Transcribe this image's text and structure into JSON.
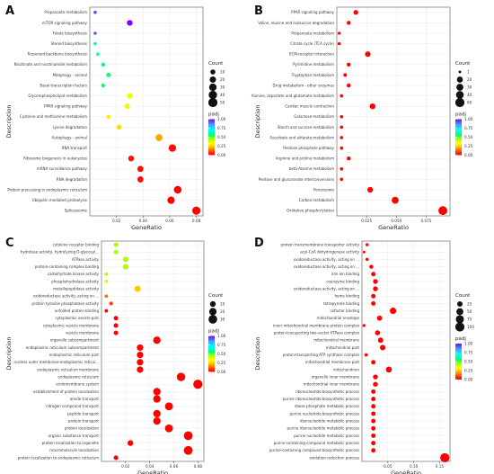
{
  "chart_data": [
    {
      "panel_label": "A",
      "type": "scatter",
      "xlabel": "GeneRatio",
      "ylabel": "Description",
      "x_ticks": [
        "0.02",
        "0.04",
        "0.06",
        "0.08"
      ],
      "xlim": [
        0.0,
        0.085
      ],
      "size_legend": {
        "title": "Count",
        "values": [
          10,
          20,
          30,
          40,
          50
        ]
      },
      "color_legend": {
        "title": "padj",
        "values": [
          "1.00",
          "0.75",
          "0.50",
          "0.25",
          "0.00"
        ]
      },
      "points": [
        {
          "term": "Propanoate metabolism",
          "x": 0.004,
          "count": 2,
          "padj": 0.95
        },
        {
          "term": "mTOR signaling pathway",
          "x": 0.03,
          "count": 15,
          "padj": 1.0
        },
        {
          "term": "Folate biosynthesis",
          "x": 0.004,
          "count": 2,
          "padj": 0.92
        },
        {
          "term": "Steroid biosynthesis",
          "x": 0.004,
          "count": 2,
          "padj": 0.6
        },
        {
          "term": "Terpenoid backbone biosynthesis",
          "x": 0.006,
          "count": 3,
          "padj": 0.65
        },
        {
          "term": "Nicotinate and nicotinamide metabolism",
          "x": 0.01,
          "count": 5,
          "padj": 0.58
        },
        {
          "term": "Mitophagy - animal",
          "x": 0.014,
          "count": 6,
          "padj": 0.55
        },
        {
          "term": "Basal transcription factors",
          "x": 0.01,
          "count": 4,
          "padj": 0.55
        },
        {
          "term": "Glycerophospholipid metabolism",
          "x": 0.03,
          "count": 14,
          "padj": 0.35
        },
        {
          "term": "PPAR signaling pathway",
          "x": 0.028,
          "count": 13,
          "padj": 0.35
        },
        {
          "term": "Cysteine and methionine metabolism",
          "x": 0.014,
          "count": 6,
          "padj": 0.3
        },
        {
          "term": "Lysine degradation",
          "x": 0.022,
          "count": 10,
          "padj": 0.28
        },
        {
          "term": "Autophagy - animal",
          "x": 0.052,
          "count": 25,
          "padj": 0.2
        },
        {
          "term": "RNA transport",
          "x": 0.062,
          "count": 30,
          "padj": 0.02
        },
        {
          "term": "Ribosome biogenesis in eukaryotes",
          "x": 0.031,
          "count": 15,
          "padj": 0.03
        },
        {
          "term": "mRNA surveillance pathway",
          "x": 0.038,
          "count": 18,
          "padj": 0.02
        },
        {
          "term": "RNA degradation",
          "x": 0.038,
          "count": 18,
          "padj": 0.02
        },
        {
          "term": "Protein processing in endoplasmic reticulum",
          "x": 0.066,
          "count": 32,
          "padj": 0.0
        },
        {
          "term": "Ubiquitin mediated proteolysis",
          "x": 0.061,
          "count": 29,
          "padj": 0.0
        },
        {
          "term": "Spliceosome",
          "x": 0.08,
          "count": 38,
          "padj": 0.0
        }
      ]
    },
    {
      "panel_label": "B",
      "type": "scatter",
      "xlabel": "GeneRatio",
      "ylabel": "Description",
      "x_ticks": [
        "0.025",
        "0.050",
        "0.075"
      ],
      "xlim": [
        0.0,
        0.095
      ],
      "size_legend": {
        "title": "Count",
        "values": [
          1,
          20,
          30,
          40,
          60
        ]
      },
      "color_legend": {
        "title": "padj",
        "values": [
          "1.00",
          "0.75",
          "0.50",
          "0.25",
          "0.00"
        ]
      },
      "points": [
        {
          "term": "PPAR signaling pathway",
          "x": 0.016,
          "count": 10,
          "padj": 0.0
        },
        {
          "term": "Valine, leucine and isoleucine degradation",
          "x": 0.01,
          "count": 6,
          "padj": 0.0
        },
        {
          "term": "Propanoate metabolism",
          "x": 0.002,
          "count": 2,
          "padj": 0.0
        },
        {
          "term": "Citrate cycle (TCA cycle)",
          "x": 0.002,
          "count": 2,
          "padj": 0.0
        },
        {
          "term": "ECM-receptor interaction",
          "x": 0.026,
          "count": 16,
          "padj": 0.0
        },
        {
          "term": "Pyrimidine metabolism",
          "x": 0.01,
          "count": 6,
          "padj": 0.0
        },
        {
          "term": "Tryptophan metabolism",
          "x": 0.007,
          "count": 4,
          "padj": 0.0
        },
        {
          "term": "Drug metabolism - other enzymes",
          "x": 0.01,
          "count": 6,
          "padj": 0.0
        },
        {
          "term": "Alanine, aspartate and glutamate metabolism",
          "x": 0.004,
          "count": 3,
          "padj": 0.0
        },
        {
          "term": "Cardiac muscle contraction",
          "x": 0.03,
          "count": 18,
          "padj": 0.0
        },
        {
          "term": "Galactose metabolism",
          "x": 0.004,
          "count": 3,
          "padj": 0.0
        },
        {
          "term": "Starch and sucrose metabolism",
          "x": 0.004,
          "count": 3,
          "padj": 0.0
        },
        {
          "term": "Ascorbate and aldarate metabolism",
          "x": 0.004,
          "count": 3,
          "padj": 0.0
        },
        {
          "term": "Pentose phosphate pathway",
          "x": 0.004,
          "count": 3,
          "padj": 0.0
        },
        {
          "term": "Arginine and proline metabolism",
          "x": 0.01,
          "count": 6,
          "padj": 0.0
        },
        {
          "term": "beta-Alanine metabolism",
          "x": 0.004,
          "count": 3,
          "padj": 0.0
        },
        {
          "term": "Pentose and glucuronate interconversions",
          "x": 0.004,
          "count": 3,
          "padj": 0.0
        },
        {
          "term": "Peroxisome",
          "x": 0.028,
          "count": 17,
          "padj": 0.0
        },
        {
          "term": "Carbon metabolism",
          "x": 0.049,
          "count": 30,
          "padj": 0.0
        },
        {
          "term": "Oxidative phosphorylation",
          "x": 0.089,
          "count": 55,
          "padj": 0.0
        }
      ]
    },
    {
      "panel_label": "C",
      "type": "scatter",
      "xlabel": "GeneRatio",
      "ylabel": "Description",
      "x_ticks": [
        "0.02",
        "0.04",
        "0.06",
        "0.08"
      ],
      "xlim": [
        0.0,
        0.085
      ],
      "size_legend": {
        "title": "Count",
        "values": [
          10,
          20,
          30
        ]
      },
      "color_legend": {
        "title": "padj",
        "values": [
          "1.00",
          "0.75",
          "0.50",
          "0.25",
          "0.00"
        ]
      },
      "points": [
        {
          "term": "cytokine receptor binding",
          "x": 0.012,
          "count": 5,
          "padj": 0.45
        },
        {
          "term": "hydrolase activity, hydrolyzing O-glycosyl...",
          "x": 0.012,
          "count": 5,
          "padj": 0.45
        },
        {
          "term": "ATPase activity",
          "x": 0.02,
          "count": 9,
          "padj": 0.45
        },
        {
          "term": "protein-containing complex binding",
          "x": 0.02,
          "count": 9,
          "padj": 0.45
        },
        {
          "term": "carbohydrate kinase activity",
          "x": 0.004,
          "count": 2,
          "padj": 0.45
        },
        {
          "term": "phosphohydrolase activity",
          "x": 0.004,
          "count": 2,
          "padj": 0.4
        },
        {
          "term": "metallopeptidase activity",
          "x": 0.03,
          "count": 13,
          "padj": 0.25
        },
        {
          "term": "oxidoreductase activity, acting on ...",
          "x": 0.004,
          "count": 2,
          "padj": 0.15
        },
        {
          "term": "protein tyrosine phosphatase activity",
          "x": 0.008,
          "count": 3,
          "padj": 0.1
        },
        {
          "term": "unfolded protein binding",
          "x": 0.004,
          "count": 2,
          "padj": 0.0
        },
        {
          "term": "cytoplasmic vesicle part",
          "x": 0.012,
          "count": 5,
          "padj": 0.0
        },
        {
          "term": "cytoplasmic vesicle membrane",
          "x": 0.012,
          "count": 5,
          "padj": 0.0
        },
        {
          "term": "vesicle membrane",
          "x": 0.012,
          "count": 5,
          "padj": 0.0
        },
        {
          "term": "organelle subcompartment",
          "x": 0.046,
          "count": 20,
          "padj": 0.0
        },
        {
          "term": "endoplasmic reticulum subcompartment",
          "x": 0.032,
          "count": 14,
          "padj": 0.0
        },
        {
          "term": "endoplasmic reticulum part",
          "x": 0.032,
          "count": 14,
          "padj": 0.0
        },
        {
          "term": "nuclear outer membrane-endoplasmic reticul...",
          "x": 0.032,
          "count": 14,
          "padj": 0.0
        },
        {
          "term": "endoplasmic reticulum membrane",
          "x": 0.032,
          "count": 14,
          "padj": 0.0
        },
        {
          "term": "endoplasmic reticulum",
          "x": 0.066,
          "count": 28,
          "padj": 0.0
        },
        {
          "term": "endomembrane system",
          "x": 0.08,
          "count": 34,
          "padj": 0.0
        },
        {
          "term": "establishment of protein localization",
          "x": 0.046,
          "count": 20,
          "padj": 0.0
        },
        {
          "term": "amide transport",
          "x": 0.046,
          "count": 20,
          "padj": 0.0
        },
        {
          "term": "nitrogen compound transport",
          "x": 0.056,
          "count": 24,
          "padj": 0.0
        },
        {
          "term": "peptide transport",
          "x": 0.046,
          "count": 20,
          "padj": 0.0
        },
        {
          "term": "protein transport",
          "x": 0.046,
          "count": 20,
          "padj": 0.0
        },
        {
          "term": "protein localization",
          "x": 0.056,
          "count": 24,
          "padj": 0.0
        },
        {
          "term": "organic substance transport",
          "x": 0.072,
          "count": 31,
          "padj": 0.0
        },
        {
          "term": "protein localization to organelle",
          "x": 0.024,
          "count": 10,
          "padj": 0.0
        },
        {
          "term": "macromolecule localization",
          "x": 0.072,
          "count": 31,
          "padj": 0.0
        },
        {
          "term": "protein localization to endoplasmic reticulum",
          "x": 0.012,
          "count": 5,
          "padj": 0.0
        }
      ]
    },
    {
      "panel_label": "D",
      "type": "scatter",
      "xlabel": "GeneRatio",
      "ylabel": "Description",
      "x_ticks": [
        "0.05",
        "0.10",
        "0.15"
      ],
      "xlim": [
        0.0,
        0.17
      ],
      "size_legend": {
        "title": "Count",
        "values": [
          25,
          50,
          75,
          100
        ]
      },
      "color_legend": {
        "title": "padj",
        "values": [
          "1.00",
          "0.75",
          "0.50",
          "0.25",
          "0.00"
        ]
      },
      "points": [
        {
          "term": "protein transmembrane transporter activity",
          "x": 0.01,
          "count": 4,
          "padj": 0.0
        },
        {
          "term": "acyl-CoA dehydrogenase activity",
          "x": 0.004,
          "count": 2,
          "padj": 0.0
        },
        {
          "term": "oxidoreductase activity, acting on ...",
          "x": 0.01,
          "count": 4,
          "padj": 0.0
        },
        {
          "term": "oxidoreductase activity, acting on ...",
          "x": 0.018,
          "count": 10,
          "padj": 0.0
        },
        {
          "term": "iron ion binding",
          "x": 0.022,
          "count": 14,
          "padj": 0.0
        },
        {
          "term": "coenzyme binding",
          "x": 0.026,
          "count": 18,
          "padj": 0.0
        },
        {
          "term": "oxidoreductase activity, acting on ...",
          "x": 0.026,
          "count": 18,
          "padj": 0.0
        },
        {
          "term": "heme binding",
          "x": 0.022,
          "count": 14,
          "padj": 0.0
        },
        {
          "term": "tetrapyrrole binding",
          "x": 0.022,
          "count": 14,
          "padj": 0.0
        },
        {
          "term": "cofactor binding",
          "x": 0.06,
          "count": 40,
          "padj": 0.0
        },
        {
          "term": "mitochondrial envelope",
          "x": 0.034,
          "count": 22,
          "padj": 0.0
        },
        {
          "term": "inner mitochondrial membrane protein complex",
          "x": 0.004,
          "count": 3,
          "padj": 0.0
        },
        {
          "term": "proton-transporting two-sector ATPase complex",
          "x": 0.03,
          "count": 20,
          "padj": 0.0
        },
        {
          "term": "mitochondrial membrane",
          "x": 0.036,
          "count": 24,
          "padj": 0.0
        },
        {
          "term": "mitochondrial part",
          "x": 0.04,
          "count": 26,
          "padj": 0.0
        },
        {
          "term": "proton-transporting ATP synthase complex",
          "x": 0.008,
          "count": 5,
          "padj": 0.0
        },
        {
          "term": "mitochondrial membrane part",
          "x": 0.022,
          "count": 14,
          "padj": 0.0
        },
        {
          "term": "mitochondrion",
          "x": 0.052,
          "count": 34,
          "padj": 0.0
        },
        {
          "term": "organelle inner membrane",
          "x": 0.026,
          "count": 18,
          "padj": 0.0
        },
        {
          "term": "mitochondrial inner membrane",
          "x": 0.026,
          "count": 18,
          "padj": 0.0
        },
        {
          "term": "ribonucleotide biosynthetic process",
          "x": 0.022,
          "count": 14,
          "padj": 0.0
        },
        {
          "term": "purine ribonucleotide biosynthetic process",
          "x": 0.022,
          "count": 14,
          "padj": 0.0
        },
        {
          "term": "ribose phosphate metabolic process",
          "x": 0.022,
          "count": 14,
          "padj": 0.0
        },
        {
          "term": "purine nucleotide biosynthetic process",
          "x": 0.022,
          "count": 14,
          "padj": 0.0
        },
        {
          "term": "ribonucleotide metabolic process",
          "x": 0.022,
          "count": 14,
          "padj": 0.0
        },
        {
          "term": "purine ribonucleotide metabolic process",
          "x": 0.022,
          "count": 14,
          "padj": 0.0
        },
        {
          "term": "purine nucleotide metabolic process",
          "x": 0.022,
          "count": 14,
          "padj": 0.0
        },
        {
          "term": "purine-containing compound metabolic process",
          "x": 0.022,
          "count": 14,
          "padj": 0.0
        },
        {
          "term": "purine-containing compound biosynthetic process",
          "x": 0.022,
          "count": 14,
          "padj": 0.0
        },
        {
          "term": "oxidation-reduction process",
          "x": 0.16,
          "count": 100,
          "padj": 0.0
        }
      ]
    }
  ],
  "colors": {
    "padj_gradient": [
      "#7f00ff",
      "#3fa0ff",
      "#00ffff",
      "#00ff66",
      "#aaff00",
      "#ffff00",
      "#ffa500",
      "#ff3300",
      "#ff0000"
    ],
    "axis_text": "#333333",
    "grid": "#ebebeb"
  }
}
